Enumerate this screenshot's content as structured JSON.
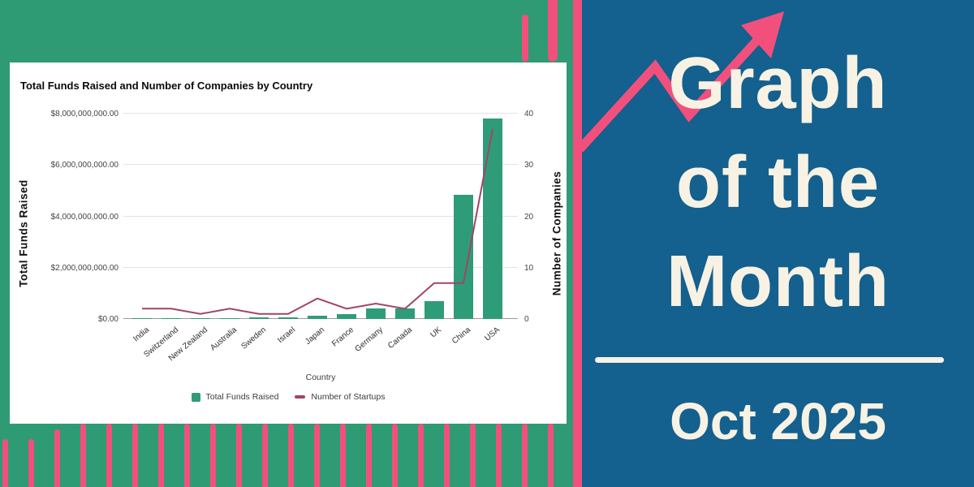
{
  "chart": {
    "title": "Total Funds Raised and Number of Companies by Country",
    "y_left_title": "Total Funds Raised",
    "y_right_title": "Number of Companies",
    "x_title": "Country",
    "left_ticks": [
      "$8,000,000,000.00",
      "$6,000,000,000.00",
      "$4,000,000,000.00",
      "$2,000,000,000.00",
      "$0.00"
    ],
    "right_ticks": [
      "40",
      "30",
      "20",
      "10",
      "0"
    ],
    "legend": {
      "bars_label": "Total Funds Raised",
      "line_label": "Number of Startups"
    }
  },
  "chart_data": {
    "type": "bar",
    "subtype": "combo bar+line, dual axis",
    "title": "Total Funds Raised and Number of Companies by Country",
    "xlabel": "Country",
    "categories": [
      "India",
      "Switzerland",
      "New Zealand",
      "Australia",
      "Sweden",
      "Israel",
      "Japan",
      "France",
      "Germany",
      "Canada",
      "UK",
      "China",
      "USA"
    ],
    "series": [
      {
        "name": "Total Funds Raised",
        "type": "bar",
        "axis": "left",
        "color": "#2F9C79",
        "values": [
          30000000,
          25000000,
          20000000,
          25000000,
          55000000,
          60000000,
          130000000,
          180000000,
          400000000,
          420000000,
          700000000,
          4850000000,
          7800000000
        ]
      },
      {
        "name": "Number of Startups",
        "type": "line",
        "axis": "right",
        "color": "#A04566",
        "values": [
          2,
          2,
          1,
          2,
          1,
          1,
          4,
          2,
          3,
          2,
          7,
          7,
          37
        ]
      }
    ],
    "y_left": {
      "label": "Total Funds Raised",
      "range": [
        0,
        8000000000
      ],
      "tick_step": 2000000000,
      "tick_format": "$x,xxx,xxx,xxx.00"
    },
    "y_right": {
      "label": "Number of Companies",
      "range": [
        0,
        40
      ],
      "tick_step": 10
    },
    "grid": true,
    "legend_position": "bottom"
  },
  "right_panel": {
    "title_lines": {
      "line1": "Graph",
      "line2": "of the",
      "line3": "Month"
    },
    "date": "Oct 2025"
  },
  "icons": {
    "growth_arrow": "trending-up-zigzag-arrow"
  },
  "colors": {
    "background_green": "#2E9B75",
    "accent_pink": "#F2507C",
    "background_blue": "#14608E",
    "text_cream": "#F7F2E3",
    "bar_green": "#2F9C79",
    "line_maroon": "#A04566"
  }
}
